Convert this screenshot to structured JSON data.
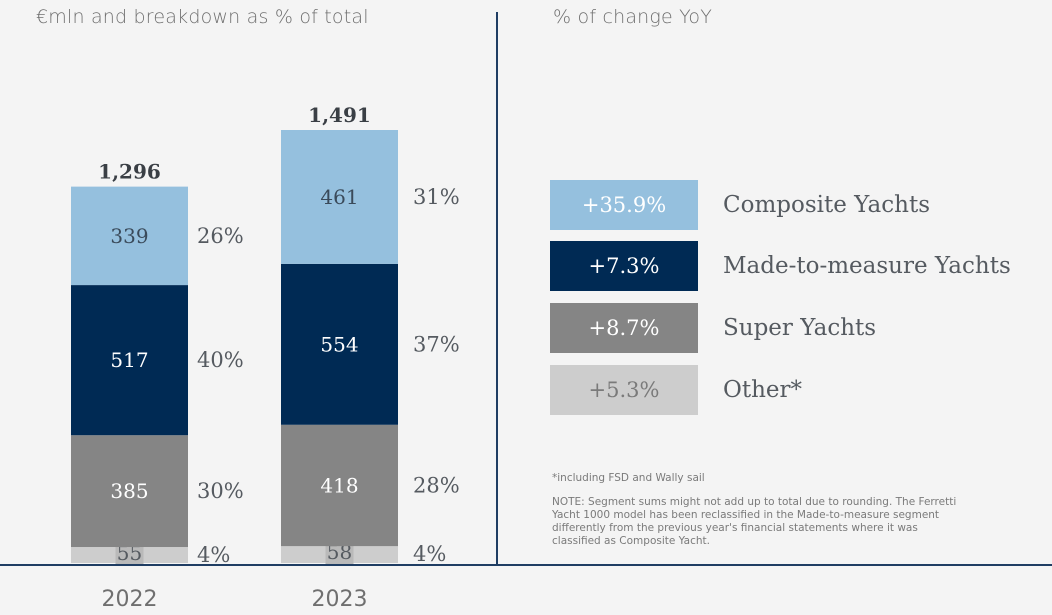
{
  "left_title": "€mln and breakdown as % of total",
  "right_title": "% of change YoY",
  "colors": {
    "composite": "#95c0de",
    "made_to_measure": "#002a54",
    "super": "#858585",
    "other": "#cdcdcd",
    "axis": "#1f3d63"
  },
  "chart_data": [
    {
      "type": "bar",
      "stacked": true,
      "categories": [
        "2022",
        "2023"
      ],
      "totals": [
        "1,296",
        "1,491"
      ],
      "series": [
        {
          "key": "other",
          "name": "Other*",
          "values": [
            55,
            58
          ],
          "percent_labels": [
            "4%",
            "4%"
          ],
          "color": "#cdcdcd"
        },
        {
          "key": "super",
          "name": "Super Yachts",
          "values": [
            385,
            418
          ],
          "percent_labels": [
            "30%",
            "28%"
          ],
          "color": "#858585"
        },
        {
          "key": "made_to_measure",
          "name": "Made-to-measure Yachts",
          "values": [
            517,
            554
          ],
          "percent_labels": [
            "40%",
            "37%"
          ],
          "color": "#002a54"
        },
        {
          "key": "composite",
          "name": "Composite Yachts",
          "values": [
            339,
            461
          ],
          "percent_labels": [
            "26%",
            "31%"
          ],
          "color": "#95c0de"
        }
      ],
      "ylim": [
        0,
        1491
      ]
    },
    {
      "type": "table",
      "rows": [
        {
          "change": "+35.9%",
          "label": "Composite Yachts"
        },
        {
          "change": "+7.3%",
          "label": "Made-to-measure Yachts"
        },
        {
          "change": "+8.7%",
          "label": "Super Yachts"
        },
        {
          "change": "+5.3%",
          "label": "Other*"
        }
      ]
    }
  ],
  "legend": [
    {
      "change": "+35.9%",
      "label": "Composite Yachts",
      "color": "#95c0de",
      "text_color": "#ffffff"
    },
    {
      "change": "+7.3%",
      "label": "Made-to-measure Yachts",
      "color": "#002a54",
      "text_color": "#ffffff"
    },
    {
      "change": "+8.7%",
      "label": "Super Yachts",
      "color": "#858585",
      "text_color": "#ffffff"
    },
    {
      "change": "+5.3%",
      "label": "Other*",
      "color": "#cdcdcd",
      "text_color": "#7a7a7a"
    }
  ],
  "footnote": "*including FSD and Wally sail",
  "note": "NOTE: Segment sums might not add up to total due to rounding. The Ferretti Yacht 1000 model has been reclassified in the Made-to-measure segment differently from the previous year's financial statements where it was classified as Composite Yacht."
}
